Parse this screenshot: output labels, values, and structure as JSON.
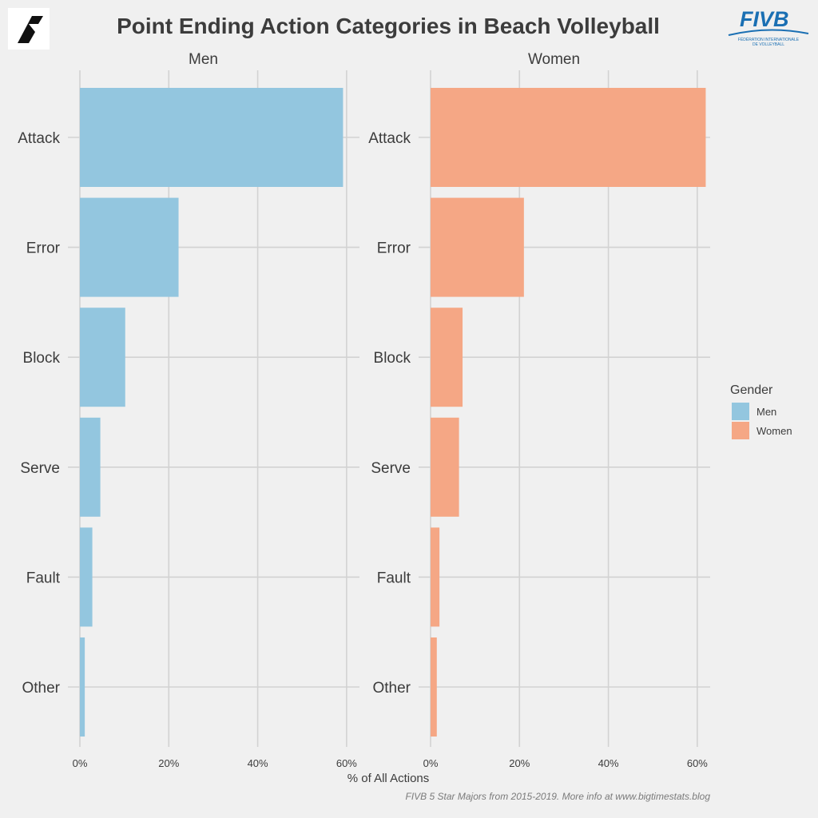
{
  "colors": {
    "background": "#f0f0f0",
    "grid": "#d2d2d2",
    "men": "#93c6df",
    "women": "#f5a785",
    "text": "#3c3c3c",
    "caption": "#7a7a7a",
    "fivb_blue": "#1a6fb3"
  },
  "logos": {
    "left": {
      "icon": "bigtimestats-logo-icon"
    },
    "right": {
      "icon": "fivb-logo-icon",
      "wordmark": "FIVB",
      "subtext_line1": "FÉDÉRATION INTERNATIONALE",
      "subtext_line2": "DE VOLLEYBALL"
    }
  },
  "chart_data": {
    "type": "bar",
    "orientation": "horizontal",
    "title": "Point Ending Action Categories in Beach Volleyball",
    "xlabel": "% of All Actions",
    "ylabel": "",
    "xlim": [
      0,
      62
    ],
    "x_ticks": [
      0,
      20,
      40,
      60
    ],
    "x_tick_labels": [
      "0%",
      "20%",
      "40%",
      "60%"
    ],
    "grid": true,
    "categories": [
      "Attack",
      "Error",
      "Block",
      "Serve",
      "Fault",
      "Other"
    ],
    "facets": [
      {
        "name": "Men",
        "series": "Men",
        "values": [
          59.2,
          22.2,
          10.2,
          4.6,
          2.8,
          1.1
        ]
      },
      {
        "name": "Women",
        "series": "Women",
        "values": [
          61.9,
          21.0,
          7.2,
          6.4,
          2.0,
          1.4
        ]
      }
    ],
    "legend": {
      "title": "Gender",
      "placement": "right",
      "entries": [
        {
          "label": "Men",
          "color": "#93c6df"
        },
        {
          "label": "Women",
          "color": "#f5a785"
        }
      ]
    },
    "caption": "FIVB 5 Star Majors from 2015-2019. More info at www.bigtimestats.blog"
  }
}
